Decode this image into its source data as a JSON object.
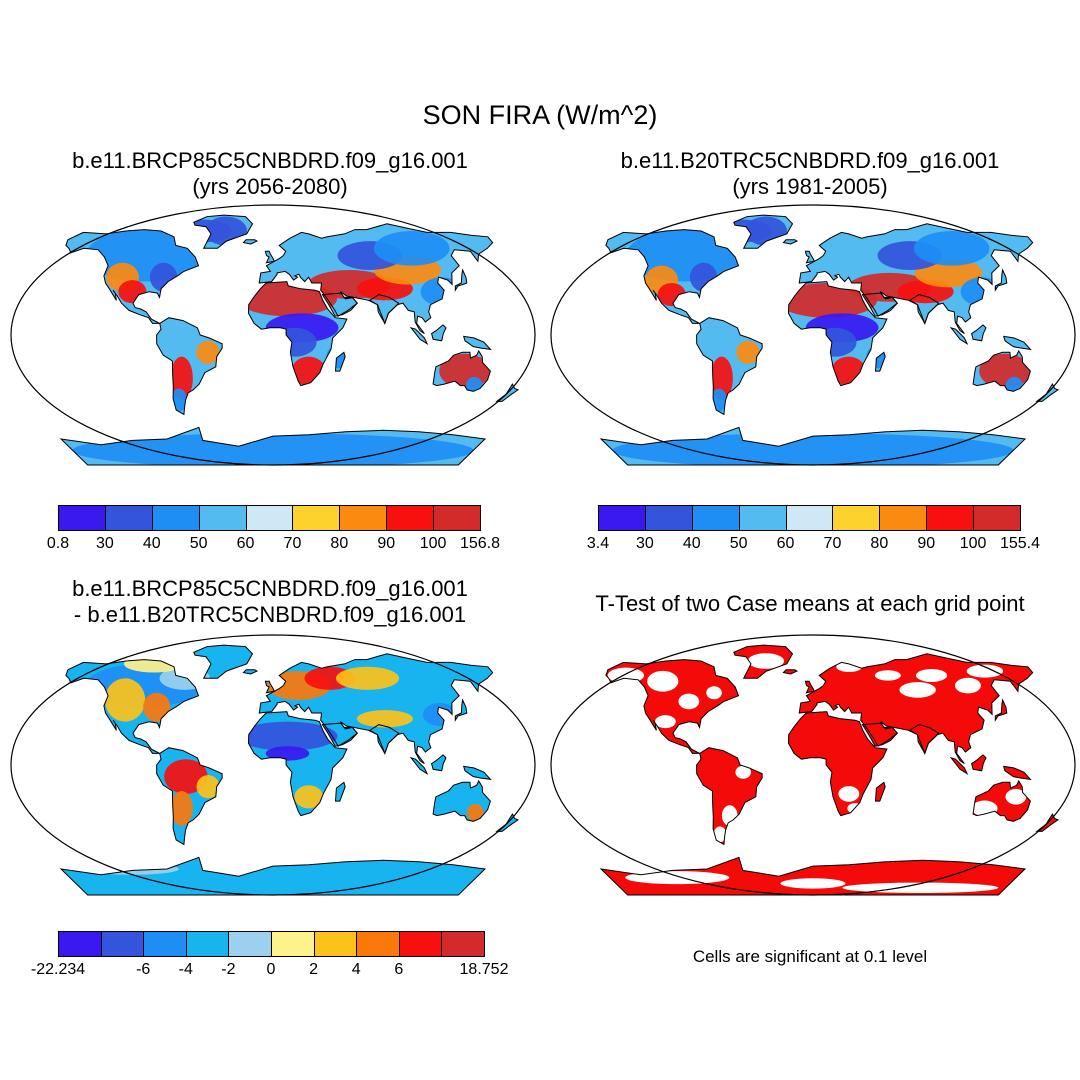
{
  "title": "SON FIRA (W/m^2)",
  "panels": [
    {
      "id": "p1",
      "title_line1": "b.e11.BRCP85C5CNBDRD.f09_g16.001",
      "title_line2": "(yrs 2056-2080)",
      "colorbar": {
        "colors": [
          "#3a18f0",
          "#3454dc",
          "#1e8ef5",
          "#54bbf0",
          "#cfe8f6",
          "#fdd22c",
          "#fb8b10",
          "#f7100e",
          "#d32a2a"
        ],
        "labels": [
          "0.8",
          "30",
          "40",
          "50",
          "60",
          "70",
          "80",
          "90",
          "100",
          "156.8"
        ]
      }
    },
    {
      "id": "p2",
      "title_line1": "b.e11.B20TRC5CNBDRD.f09_g16.001",
      "title_line2": "(yrs 1981-2005)",
      "colorbar": {
        "colors": [
          "#3a18f0",
          "#3454dc",
          "#1e8ef5",
          "#54bbf0",
          "#cfe8f6",
          "#fdd22c",
          "#fb8b10",
          "#f7100e",
          "#d32a2a"
        ],
        "labels": [
          "3.4",
          "30",
          "40",
          "50",
          "60",
          "70",
          "80",
          "90",
          "100",
          "155.4"
        ]
      }
    },
    {
      "id": "p3",
      "title_line1": "b.e11.BRCP85C5CNBDRD.f09_g16.001",
      "title_line2": "- b.e11.B20TRC5CNBDRD.f09_g16.001",
      "colorbar": {
        "colors": [
          "#3a18f0",
          "#3454dc",
          "#1e8ef5",
          "#18b4f0",
          "#9bd1ee",
          "#fef38a",
          "#fdc21a",
          "#fb780c",
          "#f7100e",
          "#d32a2a"
        ],
        "labels": [
          "-22.234",
          "",
          "-6",
          "-4",
          "-2",
          "0",
          "2",
          "4",
          "6",
          "",
          "18.752"
        ]
      }
    },
    {
      "id": "p4",
      "title_line1": "T-Test of two Case means at each grid point",
      "note": "Cells are significant at 0.1 level",
      "significance_color": "#f50a0a"
    }
  ],
  "colors": {
    "land_outline": "#000000",
    "background": "#ffffff"
  }
}
